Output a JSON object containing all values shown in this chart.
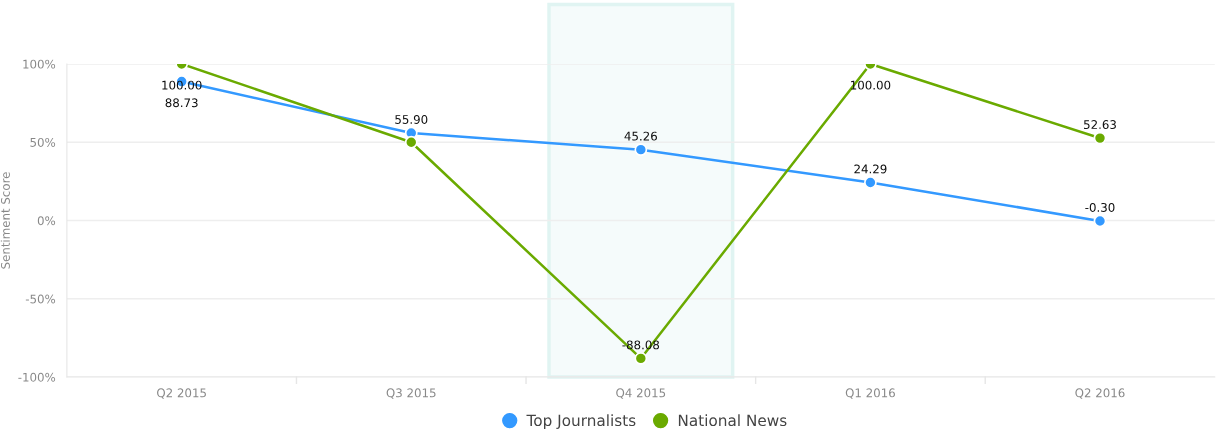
{
  "chart_data": {
    "type": "line",
    "ylabel": "Sentiment Score",
    "categories": [
      "Q2 2015",
      "Q3 2015",
      "Q4 2015",
      "Q1 2016",
      "Q2 2016"
    ],
    "series": [
      {
        "name": "Top Journalists",
        "color": "#3399ff",
        "values": [
          88.73,
          55.9,
          45.26,
          24.29,
          -0.3
        ],
        "value_labels": [
          "88.73",
          "55.90",
          "45.26",
          "24.29",
          "-0.30"
        ]
      },
      {
        "name": "National News",
        "color": "#6aaa00",
        "values": [
          100.0,
          50,
          -88.08,
          100.0,
          52.63
        ],
        "value_labels": [
          "100.00",
          null,
          "-88.08",
          "100.00",
          "52.63"
        ]
      }
    ],
    "ylim": [
      -100,
      100
    ],
    "yticks": [
      {
        "value": -100,
        "label": "-100%"
      },
      {
        "value": -50,
        "label": "-50%"
      },
      {
        "value": 0,
        "label": "0%"
      },
      {
        "value": 50,
        "label": "50%"
      },
      {
        "value": 100,
        "label": "100%"
      }
    ],
    "bands": [
      {
        "axis": "x",
        "from": "Q4 2015",
        "to": "Q4 2015",
        "color": "#e0f4f2"
      }
    ],
    "grid": "y",
    "legend": "bottom",
    "marker": "circle",
    "line_style": "solid"
  }
}
